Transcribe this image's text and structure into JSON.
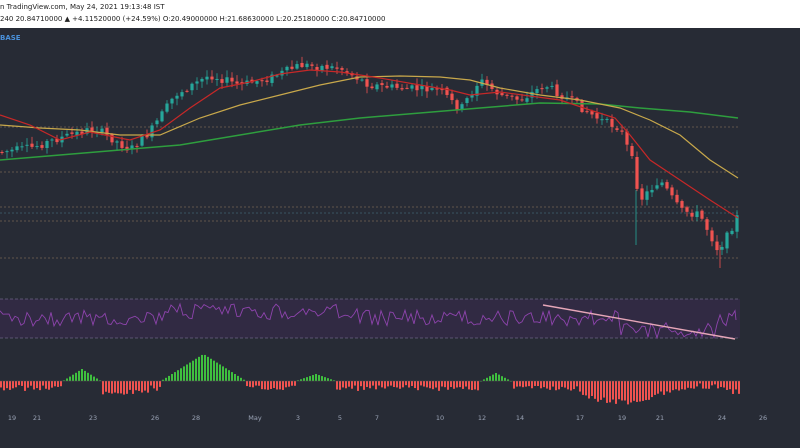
{
  "header": {
    "source_line": "n TradingView.com, May 24, 2021 19:13:48 IST",
    "ohlc_line": "240  20.84710000  ▲ +4.11520000 (+24.59%)  O:20.49000000  H:21.68630000  L:20.25180000  C:20.84710000",
    "base_label": "BASE"
  },
  "colors": {
    "background": "#272b35",
    "bull": "#26a69a",
    "bear": "#ef5350",
    "ema_red": "#c62828",
    "ema_yellow": "#c8a84b",
    "ema_green": "#2e9e3e",
    "rsi_line": "#8e44ad",
    "rsi_band": "#3b2a4f",
    "trend_line": "#e6a6b8",
    "level_line": "#b8956a"
  },
  "chart_data": [
    {
      "type": "candlestick",
      "panel": "price",
      "x_labels": [
        "19",
        "21",
        "23",
        "26",
        "28",
        "May",
        "3",
        "5",
        "7",
        "10",
        "12",
        "14",
        "17",
        "19",
        "21",
        "24",
        "26"
      ],
      "series": [
        {
          "name": "EMA short (red)"
        },
        {
          "name": "EMA mid (yellow)"
        },
        {
          "name": "EMA long (green)"
        }
      ],
      "horizontal_levels": 6,
      "trend": "Rise from mid-April to late April peak, flat into mid-May, sharp decline to May 23 low, small rebound on May 24"
    },
    {
      "type": "line",
      "panel": "rsi",
      "band": "overbought/oversold dashed bounds",
      "divergence_trendline": "descending trendline drawn from mid-May high to May 24 low"
    },
    {
      "type": "bar",
      "panel": "momentum histogram",
      "colors": [
        "green (positive)",
        "red (negative)"
      ]
    }
  ]
}
